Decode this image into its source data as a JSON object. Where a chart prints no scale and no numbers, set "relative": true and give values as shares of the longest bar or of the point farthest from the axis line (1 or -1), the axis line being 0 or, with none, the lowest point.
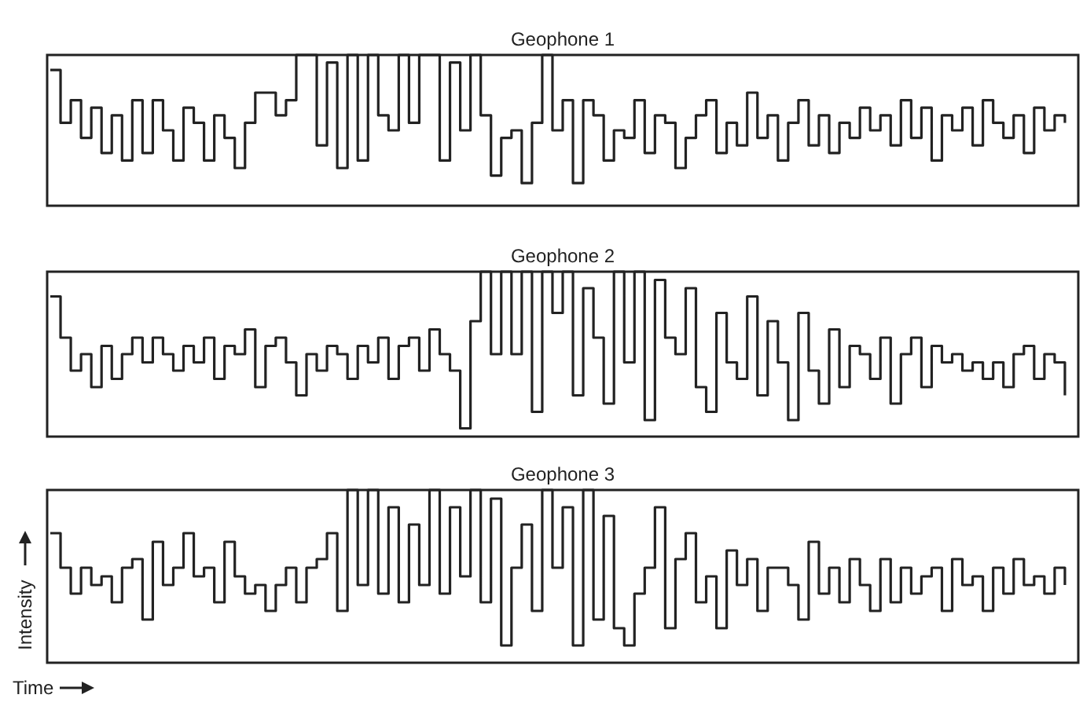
{
  "chart_data": [
    {
      "type": "step",
      "title": "Geophone 1",
      "relative": true,
      "categories": [
        null,
        null,
        null,
        null,
        null,
        null,
        null,
        null,
        null,
        null,
        null,
        null,
        null,
        null,
        null,
        null,
        null,
        null,
        null,
        null,
        null,
        null,
        null,
        null,
        null,
        null,
        null,
        null,
        null,
        null,
        null,
        null,
        null,
        null,
        null,
        null,
        null,
        null,
        null,
        null,
        null,
        null,
        null,
        null,
        null,
        null,
        null,
        null,
        null,
        null,
        null,
        null,
        null,
        null,
        null,
        null,
        null,
        null,
        null,
        null,
        null,
        null,
        null,
        null,
        null,
        null,
        null,
        null,
        null,
        null,
        null,
        null,
        null,
        null,
        null,
        null,
        null,
        null,
        null,
        null,
        null,
        null,
        null,
        null,
        null,
        null,
        null,
        null,
        null,
        null,
        null,
        null,
        null,
        null,
        null,
        null,
        null,
        null,
        null,
        null
      ],
      "series": [
        {
          "color": "#222222",
          "values": [
            0.9,
            0.55,
            0.7,
            0.45,
            0.65,
            0.35,
            0.6,
            0.3,
            0.7,
            0.35,
            0.7,
            0.5,
            0.3,
            0.65,
            0.55,
            0.3,
            0.6,
            0.45,
            0.25,
            0.55,
            0.75,
            0.75,
            0.6,
            0.7,
            1,
            1,
            0.4,
            0.95,
            0.25,
            1,
            0.3,
            1,
            0.6,
            0.5,
            1,
            0.55,
            1,
            1,
            0.3,
            0.95,
            0.5,
            1,
            0.6,
            0.2,
            0.45,
            0.5,
            0.15,
            0.55,
            1,
            0.5,
            0.7,
            0.15,
            0.7,
            0.6,
            0.3,
            0.5,
            0.45,
            0.7,
            0.35,
            0.6,
            0.55,
            0.25,
            0.45,
            0.6,
            0.7,
            0.35,
            0.55,
            0.4,
            0.75,
            0.45,
            0.6,
            0.3,
            0.55,
            0.7,
            0.4,
            0.6,
            0.35,
            0.55,
            0.45,
            0.65,
            0.5,
            0.6,
            0.4,
            0.7,
            0.45,
            0.65,
            0.3,
            0.6,
            0.5,
            0.65,
            0.4,
            0.7,
            0.55,
            0.45,
            0.6,
            0.35,
            0.65,
            0.5,
            0.6,
            0.55
          ]
        }
      ]
    },
    {
      "type": "step",
      "title": "Geophone 2",
      "relative": true,
      "categories": [
        null,
        null,
        null,
        null,
        null,
        null,
        null,
        null,
        null,
        null,
        null,
        null,
        null,
        null,
        null,
        null,
        null,
        null,
        null,
        null,
        null,
        null,
        null,
        null,
        null,
        null,
        null,
        null,
        null,
        null,
        null,
        null,
        null,
        null,
        null,
        null,
        null,
        null,
        null,
        null,
        null,
        null,
        null,
        null,
        null,
        null,
        null,
        null,
        null,
        null,
        null,
        null,
        null,
        null,
        null,
        null,
        null,
        null,
        null,
        null,
        null,
        null,
        null,
        null,
        null,
        null,
        null,
        null,
        null,
        null,
        null,
        null,
        null,
        null,
        null,
        null,
        null,
        null,
        null,
        null,
        null,
        null,
        null,
        null,
        null,
        null,
        null,
        null,
        null,
        null,
        null,
        null,
        null,
        null,
        null,
        null,
        null,
        null,
        null,
        null
      ],
      "series": [
        {
          "color": "#222222",
          "values": [
            0.85,
            0.6,
            0.4,
            0.5,
            0.3,
            0.55,
            0.35,
            0.5,
            0.6,
            0.45,
            0.6,
            0.5,
            0.4,
            0.55,
            0.45,
            0.6,
            0.35,
            0.55,
            0.5,
            0.65,
            0.3,
            0.55,
            0.6,
            0.45,
            0.25,
            0.5,
            0.4,
            0.55,
            0.5,
            0.35,
            0.55,
            0.45,
            0.6,
            0.35,
            0.55,
            0.6,
            0.4,
            0.65,
            0.5,
            0.4,
            0.05,
            0.7,
            1,
            0.5,
            1,
            0.5,
            1,
            0.15,
            1,
            0.75,
            1,
            0.25,
            0.9,
            0.6,
            0.2,
            1,
            0.45,
            1,
            0.1,
            0.95,
            0.6,
            0.5,
            0.9,
            0.3,
            0.15,
            0.75,
            0.45,
            0.35,
            0.85,
            0.25,
            0.7,
            0.45,
            0.1,
            0.75,
            0.4,
            0.2,
            0.65,
            0.3,
            0.55,
            0.5,
            0.35,
            0.6,
            0.2,
            0.5,
            0.6,
            0.3,
            0.55,
            0.45,
            0.5,
            0.4,
            0.45,
            0.35,
            0.45,
            0.3,
            0.5,
            0.55,
            0.35,
            0.5,
            0.45,
            0.25
          ]
        }
      ]
    },
    {
      "type": "step",
      "title": "Geophone 3",
      "xlabel": "Time",
      "ylabel": "Intensity",
      "relative": true,
      "categories": [
        null,
        null,
        null,
        null,
        null,
        null,
        null,
        null,
        null,
        null,
        null,
        null,
        null,
        null,
        null,
        null,
        null,
        null,
        null,
        null,
        null,
        null,
        null,
        null,
        null,
        null,
        null,
        null,
        null,
        null,
        null,
        null,
        null,
        null,
        null,
        null,
        null,
        null,
        null,
        null,
        null,
        null,
        null,
        null,
        null,
        null,
        null,
        null,
        null,
        null,
        null,
        null,
        null,
        null,
        null,
        null,
        null,
        null,
        null,
        null,
        null,
        null,
        null,
        null,
        null,
        null,
        null,
        null,
        null,
        null,
        null,
        null,
        null,
        null,
        null,
        null,
        null,
        null,
        null,
        null,
        null,
        null,
        null,
        null,
        null,
        null,
        null,
        null,
        null,
        null,
        null,
        null,
        null,
        null,
        null,
        null,
        null,
        null,
        null,
        null
      ],
      "series": [
        {
          "color": "#222222",
          "values": [
            0.75,
            0.55,
            0.4,
            0.55,
            0.45,
            0.5,
            0.35,
            0.55,
            0.6,
            0.25,
            0.7,
            0.45,
            0.55,
            0.75,
            0.5,
            0.55,
            0.35,
            0.7,
            0.5,
            0.4,
            0.45,
            0.3,
            0.45,
            0.55,
            0.35,
            0.55,
            0.6,
            0.75,
            0.3,
            1,
            0.45,
            1,
            0.4,
            0.9,
            0.35,
            0.8,
            0.45,
            1,
            0.4,
            0.9,
            0.5,
            1,
            0.35,
            0.95,
            0.1,
            0.55,
            0.8,
            0.3,
            1,
            0.55,
            0.9,
            0.1,
            1,
            0.25,
            0.85,
            0.2,
            0.1,
            0.4,
            0.55,
            0.9,
            0.2,
            0.6,
            0.75,
            0.35,
            0.5,
            0.2,
            0.65,
            0.45,
            0.6,
            0.3,
            0.55,
            0.55,
            0.45,
            0.25,
            0.7,
            0.4,
            0.55,
            0.35,
            0.6,
            0.45,
            0.3,
            0.6,
            0.35,
            0.55,
            0.4,
            0.5,
            0.55,
            0.3,
            0.6,
            0.45,
            0.5,
            0.3,
            0.55,
            0.4,
            0.6,
            0.45,
            0.5,
            0.4,
            0.55,
            0.45
          ]
        }
      ]
    }
  ]
}
